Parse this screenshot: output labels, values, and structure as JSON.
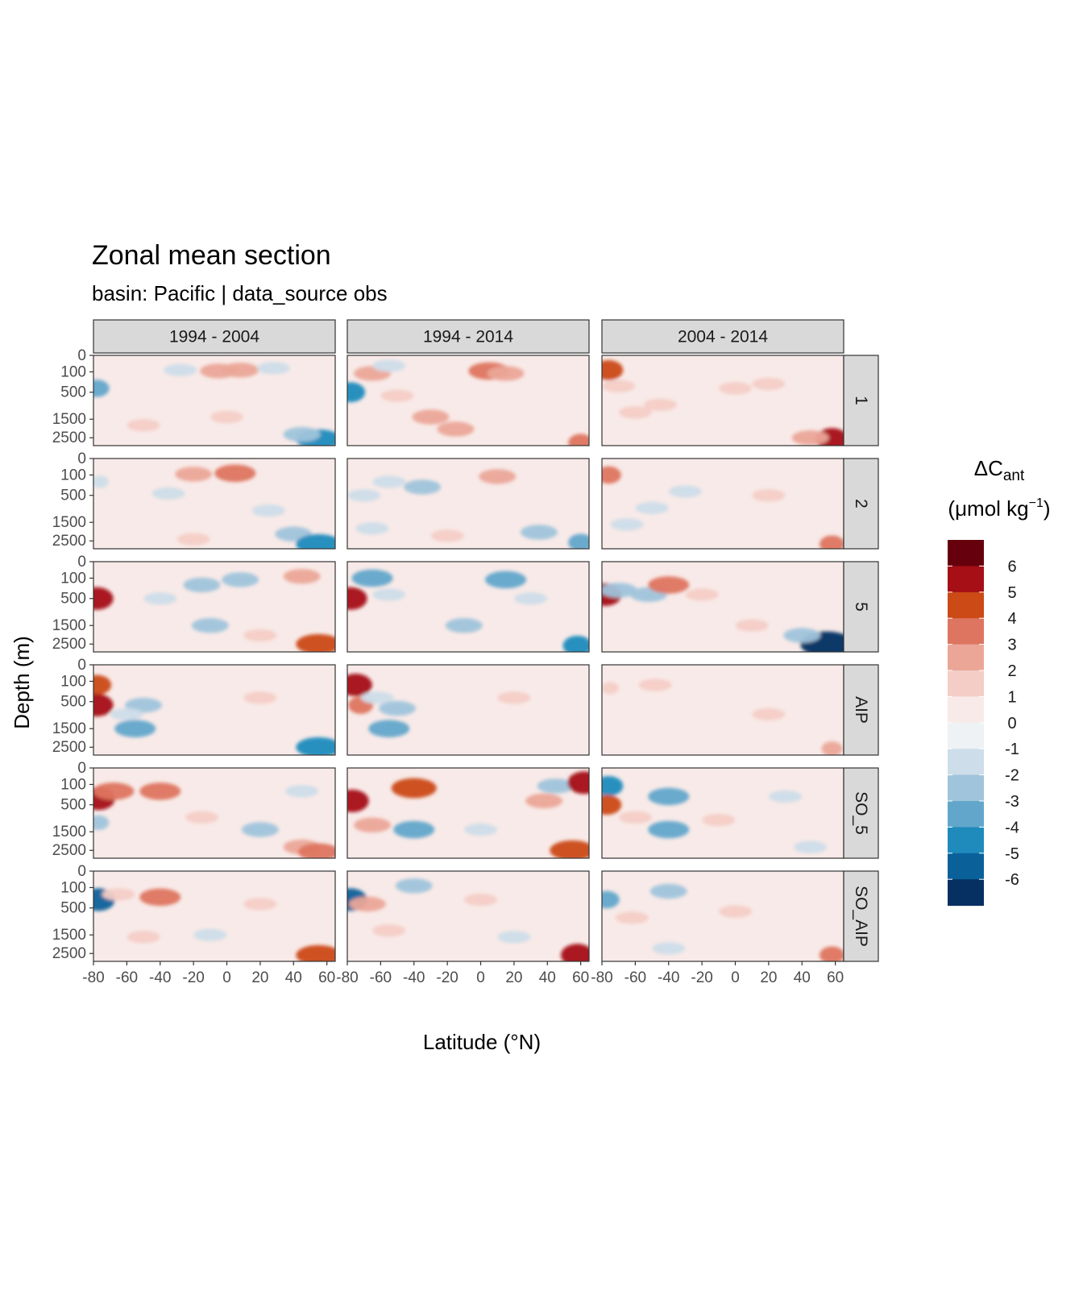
{
  "title": "Zonal mean section",
  "subtitle": "basin: Pacific | data_source obs",
  "chart_data": {
    "type": "heatmap",
    "facet_cols": [
      "1994 - 2004",
      "1994 - 2014",
      "2004 - 2014"
    ],
    "facet_rows": [
      "1",
      "2",
      "5",
      "AIP",
      "SO_5",
      "SO_AIP"
    ],
    "xlabel": "Latitude (°N)",
    "ylabel": "Depth (m)",
    "xlim": [
      -80,
      65
    ],
    "x_ticks": [
      "-80",
      "-60",
      "-40",
      "-20",
      "0",
      "20",
      "40",
      "60"
    ],
    "x_tick_values": [
      -80,
      -60,
      -40,
      -20,
      0,
      20,
      40,
      60
    ],
    "ylim": [
      0,
      3000
    ],
    "y_scale": "sqrt-reversed",
    "y_ticks": [
      "0",
      "100",
      "500",
      "1500",
      "2500"
    ],
    "y_tick_values": [
      0,
      100,
      500,
      1500,
      2500
    ],
    "legend": {
      "title_main": "ΔC",
      "title_sub": "ant",
      "unit_pre": "(μmol kg",
      "unit_sup": "−1",
      "unit_post": ")",
      "position": "right",
      "labels": [
        "6",
        "5",
        "4",
        "3",
        "2",
        "1",
        "0",
        "-1",
        "-2",
        "-3",
        "-4",
        "-5",
        "-6"
      ],
      "colors": [
        "#67000d",
        "#a50f15",
        "#cb4a16",
        "#de7560",
        "#eba698",
        "#f4cdc6",
        "#f8eae8",
        "#eef2f5",
        "#cddde9",
        "#a0c4db",
        "#62a7cb",
        "#1f8bbd",
        "#0a619a",
        "#053061"
      ]
    },
    "background_color": "#f8eae8",
    "neutral_color": "#eef2f5",
    "panels": [
      [
        [
          {
            "lat": -78,
            "depth": 400,
            "v": -3
          },
          {
            "lat": -5,
            "depth": 90,
            "v": 2
          },
          {
            "lat": 8,
            "depth": 80,
            "v": 2
          },
          {
            "lat": -28,
            "depth": 80,
            "v": -1
          },
          {
            "lat": 28,
            "depth": 60,
            "v": -1
          },
          {
            "lat": 0,
            "depth": 1400,
            "v": 1
          },
          {
            "lat": -50,
            "depth": 1800,
            "v": 1
          },
          {
            "lat": 55,
            "depth": 2600,
            "v": -4
          },
          {
            "lat": 45,
            "depth": 2300,
            "v": -2
          }
        ],
        [
          {
            "lat": -78,
            "depth": 500,
            "v": -4
          },
          {
            "lat": -65,
            "depth": 120,
            "v": 2
          },
          {
            "lat": -50,
            "depth": 600,
            "v": 1
          },
          {
            "lat": 5,
            "depth": 90,
            "v": 3
          },
          {
            "lat": 15,
            "depth": 120,
            "v": 2
          },
          {
            "lat": -30,
            "depth": 1400,
            "v": 2
          },
          {
            "lat": -15,
            "depth": 2000,
            "v": 2
          },
          {
            "lat": -55,
            "depth": 40,
            "v": -1
          },
          {
            "lat": 60,
            "depth": 2800,
            "v": 3
          }
        ],
        [
          {
            "lat": -76,
            "depth": 80,
            "v": 4
          },
          {
            "lat": -70,
            "depth": 350,
            "v": 1
          },
          {
            "lat": -60,
            "depth": 1200,
            "v": 1
          },
          {
            "lat": -45,
            "depth": 900,
            "v": 1
          },
          {
            "lat": 0,
            "depth": 400,
            "v": 1
          },
          {
            "lat": 20,
            "depth": 300,
            "v": 1
          },
          {
            "lat": 58,
            "depth": 2600,
            "v": 5
          },
          {
            "lat": 45,
            "depth": 2500,
            "v": 2
          }
        ]
      ],
      [
        [
          {
            "lat": -76,
            "depth": 200,
            "v": -1
          },
          {
            "lat": -20,
            "depth": 90,
            "v": 2
          },
          {
            "lat": 5,
            "depth": 80,
            "v": 3
          },
          {
            "lat": -35,
            "depth": 450,
            "v": -1
          },
          {
            "lat": -20,
            "depth": 2400,
            "v": 1
          },
          {
            "lat": 40,
            "depth": 2100,
            "v": -2
          },
          {
            "lat": 55,
            "depth": 2700,
            "v": -4
          },
          {
            "lat": 25,
            "depth": 1000,
            "v": -1
          }
        ],
        [
          {
            "lat": -70,
            "depth": 500,
            "v": -1
          },
          {
            "lat": -65,
            "depth": 1800,
            "v": -1
          },
          {
            "lat": -35,
            "depth": 300,
            "v": -2
          },
          {
            "lat": 10,
            "depth": 120,
            "v": 2
          },
          {
            "lat": -20,
            "depth": 2200,
            "v": 1
          },
          {
            "lat": 35,
            "depth": 2000,
            "v": -2
          },
          {
            "lat": 60,
            "depth": 2600,
            "v": -3
          },
          {
            "lat": -55,
            "depth": 200,
            "v": -1
          }
        ],
        [
          {
            "lat": -76,
            "depth": 100,
            "v": 3
          },
          {
            "lat": -65,
            "depth": 1600,
            "v": -1
          },
          {
            "lat": -30,
            "depth": 400,
            "v": -1
          },
          {
            "lat": 20,
            "depth": 500,
            "v": 1
          },
          {
            "lat": 58,
            "depth": 2700,
            "v": 3
          },
          {
            "lat": -50,
            "depth": 900,
            "v": -1
          }
        ]
      ],
      [
        [
          {
            "lat": -78,
            "depth": 500,
            "v": 5
          },
          {
            "lat": -40,
            "depth": 500,
            "v": -1
          },
          {
            "lat": -15,
            "depth": 200,
            "v": -2
          },
          {
            "lat": 8,
            "depth": 120,
            "v": -2
          },
          {
            "lat": 20,
            "depth": 2000,
            "v": 1
          },
          {
            "lat": -10,
            "depth": 1500,
            "v": -2
          },
          {
            "lat": 55,
            "depth": 2500,
            "v": 4
          },
          {
            "lat": 45,
            "depth": 80,
            "v": 2
          }
        ],
        [
          {
            "lat": -78,
            "depth": 500,
            "v": 5
          },
          {
            "lat": -65,
            "depth": 100,
            "v": -3
          },
          {
            "lat": -55,
            "depth": 400,
            "v": -1
          },
          {
            "lat": 15,
            "depth": 120,
            "v": -3
          },
          {
            "lat": -10,
            "depth": 1500,
            "v": -2
          },
          {
            "lat": 58,
            "depth": 2600,
            "v": -4
          },
          {
            "lat": 30,
            "depth": 500,
            "v": -1
          }
        ],
        [
          {
            "lat": -78,
            "depth": 400,
            "v": 5
          },
          {
            "lat": -70,
            "depth": 300,
            "v": -2
          },
          {
            "lat": -52,
            "depth": 400,
            "v": -2
          },
          {
            "lat": -40,
            "depth": 200,
            "v": 3
          },
          {
            "lat": -20,
            "depth": 400,
            "v": 1
          },
          {
            "lat": 55,
            "depth": 2500,
            "v": -6
          },
          {
            "lat": 40,
            "depth": 2000,
            "v": -2
          },
          {
            "lat": 10,
            "depth": 1500,
            "v": 1
          }
        ]
      ],
      [
        [
          {
            "lat": -78,
            "depth": 150,
            "v": 4
          },
          {
            "lat": -78,
            "depth": 600,
            "v": 5
          },
          {
            "lat": -55,
            "depth": 1500,
            "v": -3
          },
          {
            "lat": -50,
            "depth": 600,
            "v": -2
          },
          {
            "lat": -60,
            "depth": 900,
            "v": -1
          },
          {
            "lat": 55,
            "depth": 2500,
            "v": -4
          },
          {
            "lat": 20,
            "depth": 400,
            "v": 1
          }
        ],
        [
          {
            "lat": -75,
            "depth": 150,
            "v": 5
          },
          {
            "lat": -72,
            "depth": 600,
            "v": 3
          },
          {
            "lat": -55,
            "depth": 1500,
            "v": -3
          },
          {
            "lat": -50,
            "depth": 700,
            "v": -2
          },
          {
            "lat": -62,
            "depth": 400,
            "v": -1
          },
          {
            "lat": 20,
            "depth": 400,
            "v": 1
          }
        ],
        [
          {
            "lat": -75,
            "depth": 200,
            "v": 1
          },
          {
            "lat": -48,
            "depth": 150,
            "v": 1
          },
          {
            "lat": 58,
            "depth": 2600,
            "v": 2
          },
          {
            "lat": 20,
            "depth": 900,
            "v": 1
          }
        ]
      ],
      [
        [
          {
            "lat": -77,
            "depth": 350,
            "v": 5
          },
          {
            "lat": -68,
            "depth": 200,
            "v": 3
          },
          {
            "lat": -77,
            "depth": 1100,
            "v": -2
          },
          {
            "lat": -40,
            "depth": 200,
            "v": 3
          },
          {
            "lat": -15,
            "depth": 900,
            "v": 1
          },
          {
            "lat": 20,
            "depth": 1400,
            "v": -2
          },
          {
            "lat": 45,
            "depth": 2300,
            "v": 2
          },
          {
            "lat": 55,
            "depth": 2600,
            "v": 3
          },
          {
            "lat": 45,
            "depth": 200,
            "v": -1
          }
        ],
        [
          {
            "lat": -77,
            "depth": 400,
            "v": 5
          },
          {
            "lat": -65,
            "depth": 1200,
            "v": 2
          },
          {
            "lat": -40,
            "depth": 150,
            "v": 4
          },
          {
            "lat": -40,
            "depth": 1400,
            "v": -3
          },
          {
            "lat": 0,
            "depth": 1400,
            "v": -1
          },
          {
            "lat": 38,
            "depth": 400,
            "v": 2
          },
          {
            "lat": 55,
            "depth": 2500,
            "v": 4
          },
          {
            "lat": 45,
            "depth": 120,
            "v": -2
          },
          {
            "lat": 62,
            "depth": 80,
            "v": 5
          }
        ],
        [
          {
            "lat": -76,
            "depth": 120,
            "v": -4
          },
          {
            "lat": -77,
            "depth": 500,
            "v": 4
          },
          {
            "lat": -40,
            "depth": 300,
            "v": -3
          },
          {
            "lat": -40,
            "depth": 1400,
            "v": -3
          },
          {
            "lat": -60,
            "depth": 900,
            "v": 1
          },
          {
            "lat": -10,
            "depth": 1000,
            "v": 1
          },
          {
            "lat": 45,
            "depth": 2300,
            "v": -1
          },
          {
            "lat": 30,
            "depth": 300,
            "v": -1
          }
        ]
      ],
      [
        [
          {
            "lat": -77,
            "depth": 300,
            "v": -5
          },
          {
            "lat": -65,
            "depth": 200,
            "v": 1
          },
          {
            "lat": -40,
            "depth": 250,
            "v": 3
          },
          {
            "lat": -50,
            "depth": 1600,
            "v": 1
          },
          {
            "lat": -10,
            "depth": 1500,
            "v": -1
          },
          {
            "lat": 55,
            "depth": 2600,
            "v": 4
          },
          {
            "lat": 20,
            "depth": 400,
            "v": 1
          }
        ],
        [
          {
            "lat": -78,
            "depth": 300,
            "v": -5
          },
          {
            "lat": -68,
            "depth": 400,
            "v": 2
          },
          {
            "lat": -55,
            "depth": 1300,
            "v": 1
          },
          {
            "lat": -40,
            "depth": 80,
            "v": -2
          },
          {
            "lat": 20,
            "depth": 1600,
            "v": -1
          },
          {
            "lat": 58,
            "depth": 2600,
            "v": 5
          },
          {
            "lat": 0,
            "depth": 300,
            "v": 1
          }
        ],
        [
          {
            "lat": -77,
            "depth": 300,
            "v": -3
          },
          {
            "lat": -62,
            "depth": 800,
            "v": 1
          },
          {
            "lat": -40,
            "depth": 150,
            "v": -2
          },
          {
            "lat": -40,
            "depth": 2200,
            "v": -1
          },
          {
            "lat": 58,
            "depth": 2600,
            "v": 3
          },
          {
            "lat": 0,
            "depth": 600,
            "v": 1
          }
        ]
      ]
    ]
  }
}
